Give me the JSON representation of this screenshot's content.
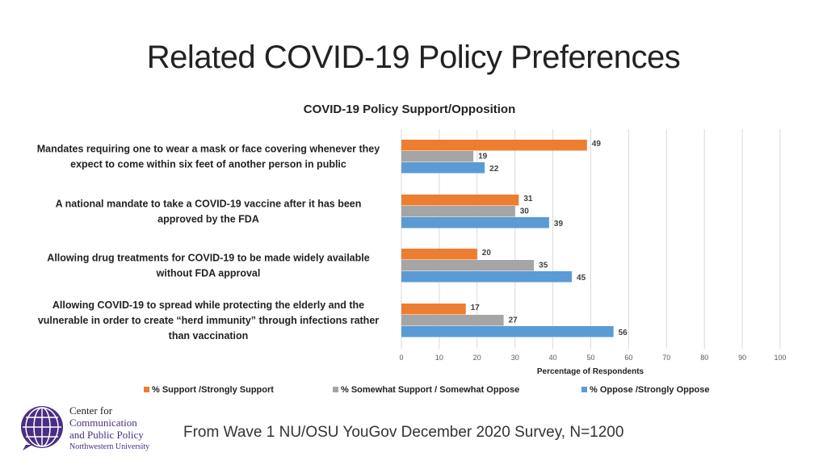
{
  "slide_title": "Related COVID-19 Policy Preferences",
  "footer": "From Wave 1 NU/OSU YouGov December 2020 Survey, N=1200",
  "logo": {
    "line1": "Center for",
    "line2": "Communication",
    "line3": "and Public Policy",
    "line4": "Northwestern University"
  },
  "chart_data": {
    "type": "bar",
    "orientation": "horizontal",
    "title": "COVID-19 Policy Support/Opposition",
    "xlabel": "Percentage of Respondents",
    "ylabel": "",
    "xlim": [
      0,
      100
    ],
    "xticks": [
      0,
      10,
      20,
      30,
      40,
      50,
      60,
      70,
      80,
      90,
      100
    ],
    "grid": true,
    "legend_placement": "bottom",
    "categories": [
      [
        "Mandates requiring one to wear a mask or face covering whenever they",
        "expect to come within six feet of another person in public"
      ],
      [
        "A national mandate to take a COVID-19 vaccine after it has been",
        "approved by the FDA"
      ],
      [
        "Allowing drug treatments for COVID-19 to be made widely available",
        "without FDA approval"
      ],
      [
        "Allowing COVID-19 to spread while protecting the elderly and the",
        "vulnerable in order to create “herd immunity” through infections rather",
        "than vaccination"
      ]
    ],
    "series": [
      {
        "name": "% Support /Strongly Support",
        "color": "#ed7d31",
        "values": [
          49,
          31,
          20,
          17
        ]
      },
      {
        "name": "% Somewhat Support / Somewhat Oppose",
        "color": "#a5a5a5",
        "values": [
          19,
          30,
          35,
          27
        ]
      },
      {
        "name": "% Oppose /Strongly Oppose",
        "color": "#5b9bd5",
        "values": [
          22,
          39,
          45,
          56
        ]
      }
    ]
  }
}
